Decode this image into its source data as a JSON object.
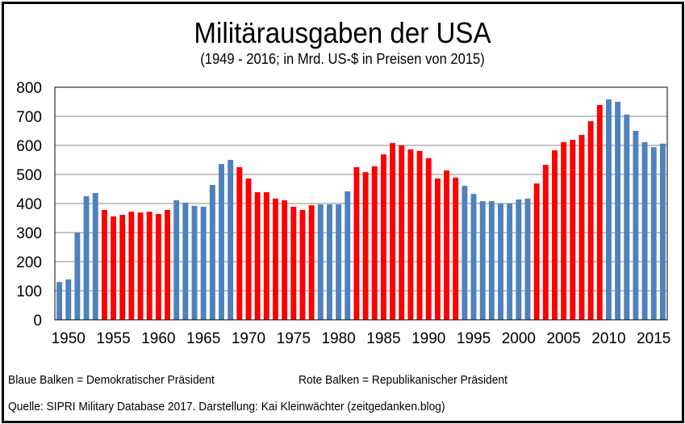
{
  "chart_data": {
    "type": "bar",
    "title": "Militärausgaben der USA",
    "subtitle": "(1949 - 2016; in Mrd. US-$ in Preisen von 2015)",
    "xlabel": "",
    "ylabel": "",
    "ylim": [
      0,
      800
    ],
    "yticks": [
      0,
      100,
      200,
      300,
      400,
      500,
      600,
      700,
      800
    ],
    "xtick_labels": [
      "1950",
      "1955",
      "1960",
      "1965",
      "1970",
      "1975",
      "1980",
      "1985",
      "1990",
      "1995",
      "2000",
      "2005",
      "2010",
      "2015"
    ],
    "grid": true,
    "colors": {
      "D": "#4F81BD",
      "R": "#FF0000"
    },
    "categories": [
      1949,
      1950,
      1951,
      1952,
      1953,
      1954,
      1955,
      1956,
      1957,
      1958,
      1959,
      1960,
      1961,
      1962,
      1963,
      1964,
      1965,
      1966,
      1967,
      1968,
      1969,
      1970,
      1971,
      1972,
      1973,
      1974,
      1975,
      1976,
      1977,
      1978,
      1979,
      1980,
      1981,
      1982,
      1983,
      1984,
      1985,
      1986,
      1987,
      1988,
      1989,
      1990,
      1991,
      1992,
      1993,
      1994,
      1995,
      1996,
      1997,
      1998,
      1999,
      2000,
      2001,
      2002,
      2003,
      2004,
      2005,
      2006,
      2007,
      2008,
      2009,
      2010,
      2011,
      2012,
      2013,
      2014,
      2015,
      2016
    ],
    "values": [
      130,
      139,
      299,
      425,
      436,
      378,
      356,
      361,
      372,
      369,
      372,
      364,
      378,
      411,
      403,
      392,
      389,
      464,
      536,
      550,
      525,
      486,
      439,
      439,
      417,
      411,
      389,
      378,
      394,
      397,
      397,
      397,
      442,
      525,
      508,
      528,
      569,
      608,
      600,
      586,
      581,
      556,
      486,
      514,
      489,
      461,
      433,
      408,
      408,
      400,
      400,
      414,
      417,
      469,
      533,
      583,
      611,
      619,
      636,
      683,
      739,
      758,
      750,
      706,
      650,
      611,
      594,
      606
    ],
    "party": [
      "D",
      "D",
      "D",
      "D",
      "D",
      "R",
      "R",
      "R",
      "R",
      "R",
      "R",
      "R",
      "R",
      "D",
      "D",
      "D",
      "D",
      "D",
      "D",
      "D",
      "R",
      "R",
      "R",
      "R",
      "R",
      "R",
      "R",
      "R",
      "R",
      "D",
      "D",
      "D",
      "D",
      "R",
      "R",
      "R",
      "R",
      "R",
      "R",
      "R",
      "R",
      "R",
      "R",
      "R",
      "R",
      "D",
      "D",
      "D",
      "D",
      "D",
      "D",
      "D",
      "D",
      "R",
      "R",
      "R",
      "R",
      "R",
      "R",
      "R",
      "R",
      "D",
      "D",
      "D",
      "D",
      "D",
      "D",
      "D"
    ]
  },
  "legend": {
    "blue": "Blaue Balken = Demokratischer Präsident",
    "red": "Rote Balken = Republikanischer Präsident"
  },
  "source": "Quelle: SIPRI Military Database 2017. Darstellung: Kai Kleinwächter (zeitgedanken.blog)"
}
